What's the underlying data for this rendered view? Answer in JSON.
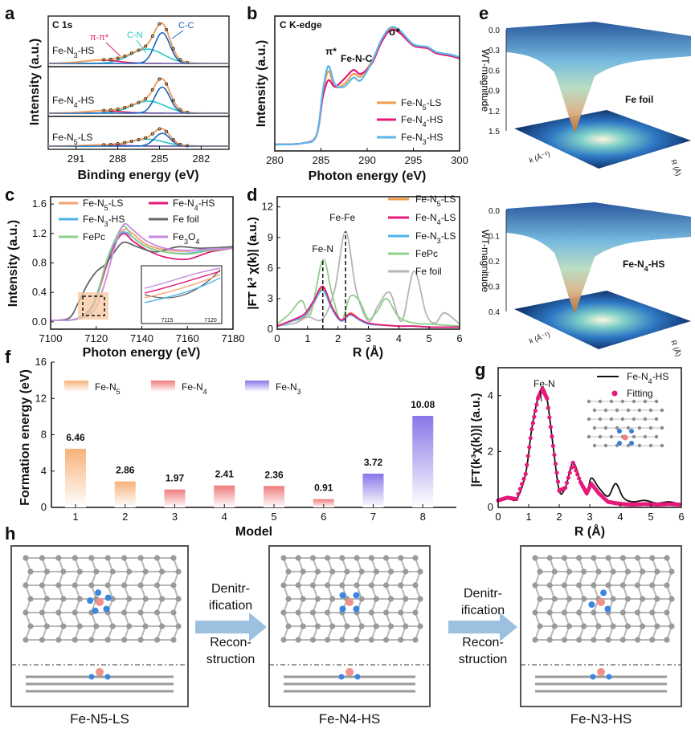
{
  "panel_letters": [
    "a",
    "b",
    "c",
    "d",
    "e",
    "f",
    "g",
    "h"
  ],
  "chart_data": [
    {
      "id": "a",
      "type": "line",
      "title": "C 1s",
      "xlabel": "Binding energy (eV)",
      "ylabel": "Intensity (a.u.)",
      "xlim": [
        293,
        280
      ],
      "x_reversed": true,
      "xticks": [
        "291",
        "288",
        "285",
        "282"
      ],
      "subpanels": [
        "Fe-N3-HS",
        "Fe-N4-HS",
        "Fe-N5-LS"
      ],
      "annotations": [
        "π-π*",
        "C-N",
        "C-C"
      ],
      "series": [
        {
          "name": "Fe-N3-HS",
          "peaks": [
            {
              "label": "C-C",
              "center": 284.8,
              "height": 0.75
            },
            {
              "label": "C-N",
              "center": 285.9,
              "height": 0.35
            },
            {
              "label": "π-π*",
              "center": 289.2,
              "height": 0.08
            }
          ]
        },
        {
          "name": "Fe-N4-HS",
          "peaks": [
            {
              "label": "C-C",
              "center": 284.8,
              "height": 0.65
            },
            {
              "label": "C-N",
              "center": 285.8,
              "height": 0.3
            },
            {
              "label": "π-π*",
              "center": 289.0,
              "height": 0.06
            }
          ]
        },
        {
          "name": "Fe-N5-LS",
          "peaks": [
            {
              "label": "C-C",
              "center": 284.8,
              "height": 0.55
            },
            {
              "label": "C-N",
              "center": 285.9,
              "height": 0.3
            },
            {
              "label": "π-π*",
              "center": 289.0,
              "height": 0.05
            }
          ]
        }
      ],
      "colors": {
        "envelope": "#f0a060",
        "cc": "#1565c0",
        "cn": "#26c6c6",
        "pp": "#e91e63",
        "raw": "#222222"
      }
    },
    {
      "id": "b",
      "type": "line",
      "title": "C K-edge",
      "xlabel": "Photon energy (eV)",
      "ylabel": "Intensity (a.u.)",
      "xlim": [
        280,
        300
      ],
      "xticks": [
        280,
        285,
        290,
        295,
        300
      ],
      "annotations": [
        "π*",
        "Fe-N-C",
        "σ*"
      ],
      "legend": [
        "Fe-N5-LS",
        "Fe-N4-HS",
        "Fe-N3-HS"
      ],
      "series": [
        {
          "name": "Fe-N5-LS",
          "color": "#ef9b4a",
          "x": [
            280,
            283,
            284.5,
            285.2,
            285.8,
            286.5,
            287.5,
            288.5,
            289.3,
            290.5,
            291.5,
            292.5,
            293.5,
            295,
            296.5,
            297.5,
            299,
            300
          ],
          "y": [
            0.05,
            0.06,
            0.12,
            0.45,
            0.62,
            0.5,
            0.52,
            0.6,
            0.58,
            0.7,
            0.85,
            0.95,
            0.93,
            0.82,
            0.8,
            0.76,
            0.74,
            0.72
          ]
        },
        {
          "name": "Fe-N4-HS",
          "color": "#e6187a",
          "x": [
            280,
            283,
            284.5,
            285.2,
            285.8,
            286.5,
            287.5,
            288.5,
            289.3,
            290.5,
            291.5,
            292.5,
            293.5,
            295,
            296.5,
            297.5,
            299,
            300
          ],
          "y": [
            0.05,
            0.06,
            0.12,
            0.42,
            0.55,
            0.5,
            0.56,
            0.63,
            0.6,
            0.68,
            0.84,
            0.94,
            0.92,
            0.82,
            0.8,
            0.76,
            0.74,
            0.72
          ]
        },
        {
          "name": "Fe-N3-HS",
          "color": "#5bb7e8",
          "x": [
            280,
            283,
            284.5,
            285.2,
            285.8,
            286.5,
            287.5,
            288.5,
            289.3,
            290.5,
            291.5,
            292.5,
            293.5,
            295,
            296.5,
            297.5,
            299,
            300
          ],
          "y": [
            0.05,
            0.06,
            0.12,
            0.47,
            0.66,
            0.52,
            0.5,
            0.57,
            0.55,
            0.69,
            0.86,
            0.96,
            0.94,
            0.83,
            0.81,
            0.77,
            0.75,
            0.73
          ]
        }
      ]
    },
    {
      "id": "c",
      "type": "line",
      "xlabel": "Photon energy (eV)",
      "ylabel": "Intensity (a.u.)",
      "xlim": [
        7100,
        7180
      ],
      "ylim": [
        -0.1,
        1.7
      ],
      "xticks": [
        7100,
        7120,
        7140,
        7160,
        7180
      ],
      "yticks": [
        0.0,
        0.4,
        0.8,
        1.2,
        1.6
      ],
      "inset_xticks": [
        "7115",
        "7120"
      ],
      "legend": [
        "Fe-N5-LS",
        "Fe-N4-HS",
        "Fe-N3-HS",
        "Fe foil",
        "FePc",
        "Fe3O4"
      ],
      "series": [
        {
          "name": "Fe-N5-LS",
          "color": "#f5a26b",
          "x": [
            7100,
            7110,
            7116,
            7120,
            7124,
            7128,
            7132,
            7136,
            7142,
            7150,
            7160,
            7170,
            7180
          ],
          "y": [
            0.02,
            0.03,
            0.1,
            0.3,
            0.7,
            1.05,
            1.25,
            1.2,
            1.05,
            0.98,
            0.96,
            1.0,
            1.0
          ]
        },
        {
          "name": "Fe-N4-HS",
          "color": "#e6187a",
          "x": [
            7100,
            7110,
            7116,
            7120,
            7124,
            7128,
            7132,
            7136,
            7142,
            7150,
            7160,
            7170,
            7180
          ],
          "y": [
            0.02,
            0.03,
            0.12,
            0.33,
            0.72,
            1.05,
            1.2,
            1.1,
            0.98,
            0.88,
            0.85,
            0.95,
            1.0
          ]
        },
        {
          "name": "Fe-N3-HS",
          "color": "#4fb3ea",
          "x": [
            7100,
            7110,
            7116,
            7120,
            7124,
            7128,
            7132,
            7136,
            7142,
            7150,
            7160,
            7170,
            7180
          ],
          "y": [
            0.02,
            0.03,
            0.13,
            0.35,
            0.75,
            1.08,
            1.22,
            1.15,
            1.02,
            0.95,
            0.93,
            0.98,
            1.0
          ]
        },
        {
          "name": "Fe foil",
          "color": "#666666",
          "x": [
            7100,
            7108,
            7112,
            7116,
            7120,
            7124,
            7128,
            7132,
            7138,
            7146,
            7156,
            7166,
            7180
          ],
          "y": [
            0.02,
            0.05,
            0.25,
            0.5,
            0.68,
            0.78,
            0.95,
            1.08,
            1.02,
            0.95,
            1.02,
            1.0,
            1.02
          ]
        },
        {
          "name": "FePc",
          "color": "#8fd08a",
          "x": [
            7100,
            7110,
            7116,
            7120,
            7124,
            7128,
            7132,
            7136,
            7142,
            7150,
            7160,
            7170,
            7180
          ],
          "y": [
            0.02,
            0.03,
            0.1,
            0.3,
            0.78,
            1.1,
            1.3,
            1.15,
            1.02,
            0.95,
            0.92,
            0.97,
            1.0
          ]
        },
        {
          "name": "Fe3O4",
          "color": "#c88ae0",
          "x": [
            7100,
            7110,
            7116,
            7120,
            7124,
            7128,
            7132,
            7136,
            7142,
            7150,
            7160,
            7170,
            7180
          ],
          "y": [
            0.02,
            0.03,
            0.08,
            0.2,
            0.55,
            1.0,
            1.32,
            1.25,
            1.1,
            1.0,
            0.97,
            0.99,
            1.0
          ]
        }
      ]
    },
    {
      "id": "d",
      "type": "line",
      "xlabel": "R (Å)",
      "ylabel": "|FT k³ χ(k)| (a.u.)",
      "xlim": [
        0,
        6
      ],
      "ylim": [
        0,
        13
      ],
      "xticks": [
        0,
        1,
        2,
        3,
        4,
        5,
        6
      ],
      "yticks": [
        0,
        3,
        6,
        9,
        12
      ],
      "annotations": [
        "Fe-N",
        "Fe-Fe"
      ],
      "legend": [
        "Fe-N5-LS",
        "Fe-N4-LS",
        "Fe-N3-LS",
        "FePc",
        "Fe foil"
      ],
      "series": [
        {
          "name": "Fe-N5-LS",
          "color": "#ef9b4a",
          "x": [
            0,
            0.5,
            0.9,
            1.2,
            1.5,
            1.8,
            2.1,
            2.4,
            2.7,
            3.0,
            3.5,
            4.0,
            4.5,
            5.0,
            5.5,
            6.0
          ],
          "y": [
            0.3,
            0.8,
            1.2,
            2.5,
            4.0,
            2.0,
            0.8,
            1.6,
            1.0,
            0.5,
            0.4,
            0.3,
            0.3,
            0.2,
            0.2,
            0.2
          ]
        },
        {
          "name": "Fe-N4-LS",
          "color": "#e6187a",
          "x": [
            0,
            0.5,
            0.9,
            1.2,
            1.5,
            1.8,
            2.1,
            2.4,
            2.7,
            3.0,
            3.5,
            4.0,
            4.5,
            5.0,
            5.5,
            6.0
          ],
          "y": [
            0.3,
            0.9,
            1.5,
            2.8,
            4.2,
            2.2,
            0.9,
            1.5,
            1.0,
            0.6,
            0.4,
            0.3,
            0.3,
            0.2,
            0.2,
            0.2
          ]
        },
        {
          "name": "Fe-N3-LS",
          "color": "#4fb3ea",
          "x": [
            0,
            0.5,
            0.9,
            1.2,
            1.5,
            1.8,
            2.1,
            2.4,
            2.7,
            3.0,
            3.5,
            4.0,
            4.5,
            5.0,
            5.5,
            6.0
          ],
          "y": [
            0.3,
            0.8,
            1.3,
            2.6,
            3.8,
            2.0,
            0.8,
            1.4,
            0.9,
            0.5,
            0.4,
            0.3,
            0.3,
            0.2,
            0.2,
            0.2
          ]
        },
        {
          "name": "FePc",
          "color": "#8fd08a",
          "x": [
            0,
            0.4,
            0.8,
            1.1,
            1.5,
            1.8,
            2.1,
            2.4,
            2.7,
            3.0,
            3.3,
            3.6,
            4.0,
            4.5,
            5.0,
            5.5,
            6.0
          ],
          "y": [
            0.5,
            1.5,
            2.8,
            1.5,
            6.8,
            3.5,
            0.8,
            3.2,
            2.8,
            1.0,
            1.8,
            3.0,
            1.2,
            0.6,
            0.5,
            0.4,
            0.3
          ]
        },
        {
          "name": "Fe foil",
          "color": "#b5b5b5",
          "x": [
            0,
            0.6,
            1.0,
            1.5,
            1.9,
            2.25,
            2.6,
            3.0,
            3.3,
            3.7,
            4.1,
            4.5,
            4.9,
            5.2,
            5.5,
            6.0
          ],
          "y": [
            0.3,
            0.6,
            1.2,
            1.0,
            4.0,
            9.6,
            3.8,
            0.8,
            2.2,
            3.6,
            0.8,
            5.7,
            1.5,
            0.6,
            1.6,
            0.5
          ]
        }
      ]
    },
    {
      "id": "e",
      "type": "heatmap",
      "plots": [
        {
          "name": "Fe foil",
          "zlabel": "WT-magnitude",
          "zticks": [
            "0.0",
            "0.3",
            "0.6",
            "0.9",
            "1.2",
            "1.5"
          ]
        },
        {
          "name": "Fe-N4-HS",
          "zlabel": "WT-magnitude",
          "zticks": [
            "0.0",
            "0.1",
            "0.2",
            "0.3",
            "0.4"
          ]
        }
      ],
      "axis_labels": {
        "k": "k (Å⁻¹)",
        "r": "R (Å)"
      }
    },
    {
      "id": "f",
      "type": "bar",
      "xlabel": "Model",
      "ylabel": "Formation energy (eV)",
      "ylim": [
        0,
        16
      ],
      "yticks": [
        0,
        4,
        8,
        12,
        16
      ],
      "categories": [
        "1",
        "2",
        "3",
        "4",
        "5",
        "6",
        "7",
        "8"
      ],
      "values": [
        6.46,
        2.86,
        1.97,
        2.41,
        2.36,
        0.91,
        3.72,
        10.08
      ],
      "value_labels": [
        "6.46",
        "2.86",
        "1.97",
        "2.41",
        "2.36",
        "0.91",
        "3.72",
        "10.08"
      ],
      "groups": [
        "Fe-N5",
        "Fe-N5",
        "Fe-N4",
        "Fe-N4",
        "Fe-N4",
        "Fe-N4",
        "Fe-N3",
        "Fe-N3"
      ],
      "legend": [
        {
          "name": "Fe-N5",
          "color": "#f7b27a"
        },
        {
          "name": "Fe-N4",
          "color": "#ef7b7b"
        },
        {
          "name": "Fe-N3",
          "color": "#8a76e8"
        }
      ]
    },
    {
      "id": "g",
      "type": "line",
      "xlabel": "R (Å)",
      "ylabel": "|FT(k³χ(k))| (a.u.)",
      "xlim": [
        0,
        6
      ],
      "ylim": [
        0,
        5
      ],
      "xticks": [
        0,
        1,
        2,
        3,
        4,
        5,
        6
      ],
      "yticks": [
        0,
        2,
        4
      ],
      "annotations": [
        "Fe-N"
      ],
      "legend": [
        "Fe-N4-HS",
        "Fitting"
      ],
      "series": [
        {
          "name": "Fe-N4-HS",
          "color": "#111111",
          "x": [
            0,
            0.3,
            0.6,
            0.9,
            1.1,
            1.3,
            1.45,
            1.6,
            1.8,
            2.0,
            2.2,
            2.45,
            2.7,
            2.9,
            3.05,
            3.3,
            3.6,
            3.85,
            4.1,
            4.4,
            4.8,
            5.2,
            5.6,
            6.0
          ],
          "y": [
            0.25,
            0.35,
            0.3,
            1.2,
            2.8,
            3.9,
            4.25,
            3.9,
            2.2,
            0.6,
            0.7,
            1.6,
            0.9,
            0.5,
            1.05,
            0.7,
            0.4,
            0.85,
            0.35,
            0.2,
            0.25,
            0.15,
            0.2,
            0.1
          ]
        },
        {
          "name": "Fitting",
          "color": "#e6187a",
          "x": [
            0,
            0.3,
            0.6,
            0.9,
            1.1,
            1.3,
            1.45,
            1.6,
            1.8,
            2.0,
            2.2,
            2.45,
            2.7,
            2.9,
            3.05,
            3.3,
            3.6,
            3.85,
            4.1,
            4.4,
            4.8,
            5.2,
            5.6,
            6.0
          ],
          "y": [
            0.25,
            0.35,
            0.3,
            1.2,
            2.8,
            3.9,
            4.25,
            3.9,
            2.2,
            0.6,
            0.7,
            1.6,
            0.9,
            0.5,
            0.85,
            0.5,
            0.2,
            0.15,
            0.12,
            0.1,
            0.12,
            0.1,
            0.12,
            0.1
          ]
        }
      ]
    }
  ],
  "panel_h": {
    "arrow1": [
      "Denitr-",
      "ification",
      "Recon-",
      "struction"
    ],
    "arrow2": [
      "Denitr-",
      "ification",
      "Recon-",
      "struction"
    ],
    "structures": [
      "Fe-N5-LS",
      "Fe-N4-HS",
      "Fe-N3-HS"
    ]
  }
}
